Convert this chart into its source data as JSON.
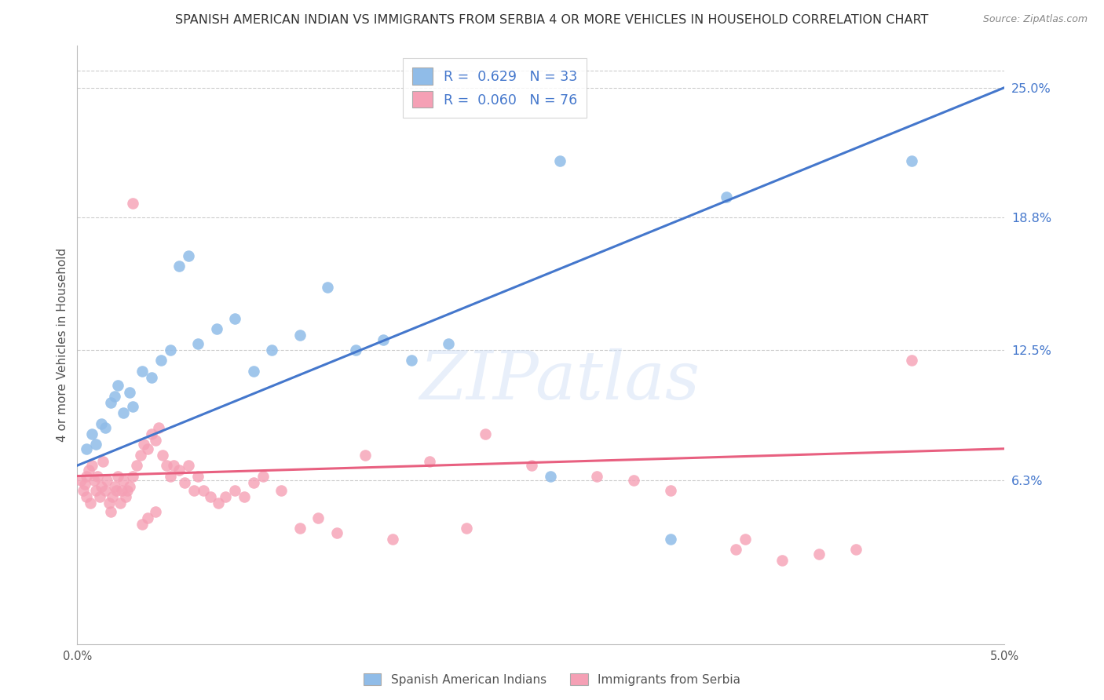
{
  "title": "SPANISH AMERICAN INDIAN VS IMMIGRANTS FROM SERBIA 4 OR MORE VEHICLES IN HOUSEHOLD CORRELATION CHART",
  "source": "Source: ZipAtlas.com",
  "ylabel": "4 or more Vehicles in Household",
  "x_min": 0.0,
  "x_max": 5.0,
  "y_min": 0.0,
  "y_max": 25.0,
  "ytick_vals": [
    6.3,
    12.5,
    18.8,
    25.0
  ],
  "ytick_labels": [
    "6.3%",
    "12.5%",
    "18.8%",
    "25.0%"
  ],
  "grid_color": "#cccccc",
  "bg_color": "#ffffff",
  "blue_color": "#90bce8",
  "pink_color": "#f5a0b5",
  "blue_line": "#4477cc",
  "pink_line": "#e86080",
  "legend_blue_R": "0.629",
  "legend_blue_N": "33",
  "legend_pink_R": "0.060",
  "legend_pink_N": "76",
  "watermark": "ZIPatlas",
  "blue_x": [
    0.05,
    0.08,
    0.1,
    0.13,
    0.15,
    0.18,
    0.2,
    0.22,
    0.25,
    0.28,
    0.3,
    0.35,
    0.4,
    0.45,
    0.5,
    0.55,
    0.6,
    0.65,
    0.75,
    0.85,
    0.95,
    1.05,
    1.2,
    1.35,
    1.5,
    1.65,
    1.8,
    2.0,
    2.55,
    2.6,
    3.2,
    3.5,
    4.5
  ],
  "blue_y": [
    7.8,
    8.5,
    8.0,
    9.0,
    8.8,
    10.0,
    10.3,
    10.8,
    9.5,
    10.5,
    9.8,
    11.5,
    11.2,
    12.0,
    12.5,
    16.5,
    17.0,
    12.8,
    13.5,
    14.0,
    11.5,
    12.5,
    13.2,
    15.5,
    12.5,
    13.0,
    12.0,
    12.8,
    6.5,
    21.5,
    3.5,
    19.8,
    21.5
  ],
  "pink_x": [
    0.02,
    0.03,
    0.04,
    0.05,
    0.05,
    0.06,
    0.07,
    0.08,
    0.09,
    0.1,
    0.11,
    0.12,
    0.13,
    0.14,
    0.15,
    0.16,
    0.17,
    0.18,
    0.19,
    0.2,
    0.21,
    0.22,
    0.23,
    0.24,
    0.25,
    0.26,
    0.27,
    0.28,
    0.3,
    0.32,
    0.34,
    0.36,
    0.38,
    0.4,
    0.42,
    0.44,
    0.46,
    0.48,
    0.5,
    0.52,
    0.55,
    0.58,
    0.6,
    0.63,
    0.65,
    0.68,
    0.72,
    0.76,
    0.8,
    0.85,
    0.9,
    0.95,
    1.0,
    1.1,
    1.2,
    1.3,
    1.4,
    1.55,
    1.7,
    1.9,
    2.1,
    2.2,
    2.45,
    2.8,
    3.0,
    3.2,
    3.55,
    3.6,
    3.8,
    4.0,
    4.2,
    4.5,
    0.3,
    0.35,
    0.38,
    0.42
  ],
  "pink_y": [
    6.3,
    5.8,
    6.1,
    5.5,
    6.5,
    6.8,
    5.2,
    7.0,
    6.3,
    5.8,
    6.5,
    5.5,
    6.0,
    7.2,
    5.8,
    6.3,
    5.2,
    4.8,
    5.5,
    6.0,
    5.8,
    6.5,
    5.2,
    5.8,
    6.3,
    5.5,
    5.8,
    6.0,
    6.5,
    7.0,
    7.5,
    8.0,
    7.8,
    8.5,
    8.2,
    8.8,
    7.5,
    7.0,
    6.5,
    7.0,
    6.8,
    6.2,
    7.0,
    5.8,
    6.5,
    5.8,
    5.5,
    5.2,
    5.5,
    5.8,
    5.5,
    6.2,
    6.5,
    5.8,
    4.0,
    4.5,
    3.8,
    7.5,
    3.5,
    7.2,
    4.0,
    8.5,
    7.0,
    6.5,
    6.3,
    5.8,
    3.0,
    3.5,
    2.5,
    2.8,
    3.0,
    12.0,
    19.5,
    4.2,
    4.5,
    4.8
  ]
}
